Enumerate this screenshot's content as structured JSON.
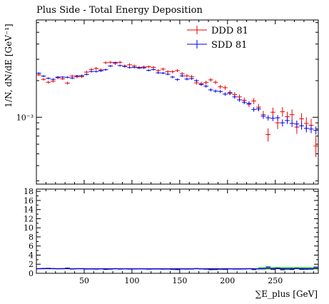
{
  "chart_data": [
    {
      "type": "scatter",
      "panel": "main",
      "title": "Plus Side - Total Energy Deposition",
      "ylabel": "1/N, dN/dE [GeV⁻¹]",
      "xlabel": "",
      "xlim": [
        0,
        295
      ],
      "ylim_log10": [
        -3.55,
        -2.2
      ],
      "yscale": "log",
      "ytick_labels": [
        {
          "value": 0.001,
          "label": "10⁻³"
        }
      ],
      "grid": false,
      "legend_position": "top-right",
      "series": [
        {
          "name": "DDD 81",
          "color": "#ee0000",
          "x": [
            2.5,
            7.5,
            12.5,
            17.5,
            22.5,
            27.5,
            32.5,
            37.5,
            42.5,
            47.5,
            52.5,
            57.5,
            62.5,
            67.5,
            72.5,
            77.5,
            82.5,
            87.5,
            92.5,
            97.5,
            102.5,
            107.5,
            112.5,
            117.5,
            122.5,
            127.5,
            132.5,
            137.5,
            142.5,
            147.5,
            152.5,
            157.5,
            162.5,
            167.5,
            172.5,
            177.5,
            182.5,
            187.5,
            192.5,
            197.5,
            202.5,
            207.5,
            212.5,
            217.5,
            222.5,
            227.5,
            232.5,
            237.5,
            242.5,
            247.5,
            252.5,
            257.5,
            262.5,
            267.5,
            272.5,
            277.5,
            282.5,
            287.5,
            292.5
          ],
          "y": [
            0.00223,
            0.00205,
            0.00194,
            0.00198,
            0.00211,
            0.00207,
            0.00191,
            0.00218,
            0.00215,
            0.00216,
            0.00235,
            0.00247,
            0.00252,
            0.00245,
            0.00281,
            0.00283,
            0.00277,
            0.00283,
            0.00264,
            0.0027,
            0.00264,
            0.00257,
            0.00259,
            0.0026,
            0.00257,
            0.00242,
            0.00249,
            0.00237,
            0.00237,
            0.00242,
            0.00228,
            0.00219,
            0.00216,
            0.00192,
            0.00189,
            0.00193,
            0.00203,
            0.00194,
            0.00178,
            0.00175,
            0.0016,
            0.00154,
            0.00147,
            0.00138,
            0.00128,
            0.00136,
            0.00121,
            0.00105,
            0.00072,
            0.0011,
            0.0009,
            0.00111,
            0.00101,
            0.00105,
            0.00083,
            0.00097,
            0.00089,
            0.00086,
            0.00058
          ],
          "yerr": [
            5e-05,
            5e-05,
            5e-05,
            5e-05,
            5e-05,
            5e-05,
            5e-05,
            6e-05,
            6e-05,
            6e-05,
            7e-05,
            7e-05,
            7e-05,
            7e-05,
            8e-05,
            8e-05,
            8e-05,
            8e-05,
            8e-05,
            8e-05,
            7e-05,
            7e-05,
            7e-05,
            7e-05,
            7e-05,
            7e-05,
            7e-05,
            7e-05,
            7e-05,
            7e-05,
            7e-05,
            7e-05,
            7e-05,
            7e-05,
            7e-05,
            7e-05,
            7e-05,
            7e-05,
            7e-05,
            7e-05,
            7e-05,
            7e-05,
            7e-05,
            7e-05,
            7e-05,
            8e-05,
            8e-05,
            8e-05,
            9e-05,
            0.0001,
            0.0001,
            0.0001,
            0.0001,
            0.00011,
            0.0001,
            0.00011,
            0.00011,
            0.00011,
            0.00011
          ]
        },
        {
          "name": "SDD 81",
          "color": "#0000ee",
          "x": [
            2.5,
            7.5,
            12.5,
            17.5,
            22.5,
            27.5,
            32.5,
            37.5,
            42.5,
            47.5,
            52.5,
            57.5,
            62.5,
            67.5,
            72.5,
            77.5,
            82.5,
            87.5,
            92.5,
            97.5,
            102.5,
            107.5,
            112.5,
            117.5,
            122.5,
            127.5,
            132.5,
            137.5,
            142.5,
            147.5,
            152.5,
            157.5,
            162.5,
            167.5,
            172.5,
            177.5,
            182.5,
            187.5,
            192.5,
            197.5,
            202.5,
            207.5,
            212.5,
            217.5,
            222.5,
            227.5,
            232.5,
            237.5,
            242.5,
            247.5,
            252.5,
            257.5,
            262.5,
            267.5,
            272.5,
            277.5,
            282.5,
            287.5,
            292.5
          ],
          "y": [
            0.0023,
            0.00218,
            0.00209,
            0.00205,
            0.00214,
            0.00214,
            0.00213,
            0.0021,
            0.00219,
            0.0022,
            0.00225,
            0.00238,
            0.00238,
            0.00241,
            0.00246,
            0.00264,
            0.00282,
            0.00266,
            0.00262,
            0.00256,
            0.00257,
            0.00254,
            0.00255,
            0.00243,
            0.00247,
            0.00232,
            0.00231,
            0.00226,
            0.00214,
            0.00204,
            0.00219,
            0.00206,
            0.00208,
            0.002,
            0.00186,
            0.0018,
            0.00168,
            0.00164,
            0.00163,
            0.00155,
            0.00157,
            0.00147,
            0.00139,
            0.00133,
            0.0013,
            0.00116,
            0.00117,
            0.00102,
            0.00099,
            0.00098,
            0.00099,
            0.0009,
            0.00094,
            0.00089,
            0.00088,
            0.00085,
            0.00081,
            0.0008,
            0.00078
          ],
          "yerr": [
            4e-05,
            4e-05,
            4e-05,
            4e-05,
            4e-05,
            4e-05,
            4e-05,
            4e-05,
            4e-05,
            4e-05,
            4e-05,
            5e-05,
            5e-05,
            5e-05,
            5e-05,
            5e-05,
            5e-05,
            5e-05,
            5e-05,
            5e-05,
            5e-05,
            5e-05,
            5e-05,
            5e-05,
            5e-05,
            5e-05,
            5e-05,
            5e-05,
            5e-05,
            5e-05,
            5e-05,
            5e-05,
            5e-05,
            5e-05,
            5e-05,
            5e-05,
            5e-05,
            5e-05,
            5e-05,
            5e-05,
            5e-05,
            5e-05,
            5e-05,
            5e-05,
            5e-05,
            5e-05,
            5e-05,
            5e-05,
            5e-05,
            5e-05,
            5e-05,
            6e-05,
            6e-05,
            6e-05,
            6e-05,
            6e-05,
            6e-05,
            6e-05,
            6e-05
          ]
        }
      ]
    },
    {
      "type": "line",
      "panel": "ratio",
      "xlabel": "∑E_plus [GeV]",
      "xlim": [
        0,
        295
      ],
      "ylim": [
        0,
        18.5
      ],
      "xtick_labels": [
        "50",
        "100",
        "150",
        "200",
        "250"
      ],
      "xtick_values": [
        50,
        100,
        150,
        200,
        250
      ],
      "ytick_labels": [
        "0",
        "2",
        "4",
        "6",
        "8",
        "10",
        "12",
        "14",
        "16",
        "18"
      ],
      "ytick_values": [
        0,
        2,
        4,
        6,
        8,
        10,
        12,
        14,
        16,
        18
      ],
      "band_color": "#00cc00",
      "series": [
        {
          "color": "#000000",
          "x": [
            0,
            295
          ],
          "y": [
            1.0,
            1.0
          ]
        },
        {
          "color": "#0000ee",
          "x": [
            2.5,
            7.5,
            12.5,
            17.5,
            22.5,
            27.5,
            32.5,
            37.5,
            42.5,
            47.5,
            52.5,
            57.5,
            62.5,
            67.5,
            72.5,
            77.5,
            82.5,
            87.5,
            92.5,
            97.5,
            102.5,
            107.5,
            112.5,
            117.5,
            122.5,
            127.5,
            132.5,
            137.5,
            142.5,
            147.5,
            152.5,
            157.5,
            162.5,
            167.5,
            172.5,
            177.5,
            182.5,
            187.5,
            192.5,
            197.5,
            202.5,
            207.5,
            212.5,
            217.5,
            222.5,
            227.5,
            232.5,
            237.5,
            242.5,
            247.5,
            252.5,
            257.5,
            262.5,
            267.5,
            272.5,
            277.5,
            282.5,
            287.5,
            292.5
          ],
          "y": [
            1.03,
            1.06,
            1.08,
            1.04,
            1.01,
            1.03,
            1.12,
            0.96,
            1.02,
            1.02,
            0.96,
            0.96,
            0.94,
            0.98,
            0.88,
            0.93,
            1.02,
            0.94,
            0.99,
            0.95,
            0.97,
            0.99,
            0.98,
            0.93,
            0.96,
            0.96,
            0.93,
            0.95,
            0.9,
            0.84,
            0.96,
            0.94,
            0.96,
            1.04,
            0.98,
            0.93,
            0.83,
            0.85,
            0.92,
            0.89,
            0.98,
            0.95,
            0.95,
            0.96,
            1.02,
            0.85,
            0.97,
            0.97,
            1.38,
            0.89,
            1.1,
            0.81,
            0.93,
            0.85,
            1.06,
            0.88,
            0.91,
            0.93,
            1.34
          ]
        }
      ]
    }
  ]
}
